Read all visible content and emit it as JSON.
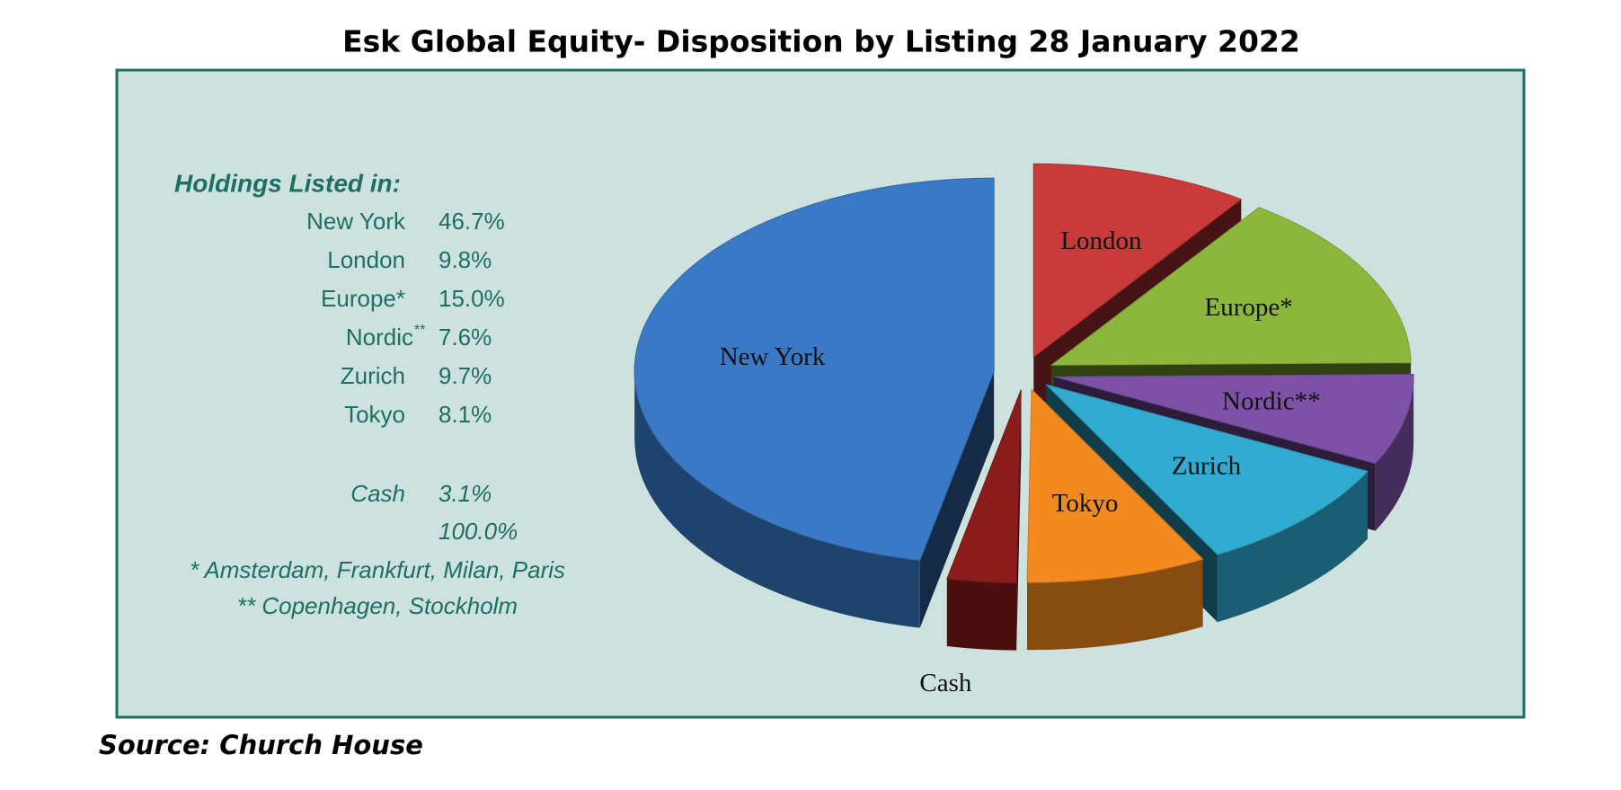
{
  "chart_data": {
    "type": "pie",
    "title": "Esk Global Equity- Disposition by Listing 28 January 2022",
    "categories": [
      "New York",
      "London",
      "Europe*",
      "Nordic**",
      "Zurich",
      "Tokyo",
      "Cash"
    ],
    "values": [
      46.7,
      9.8,
      15.0,
      7.6,
      9.7,
      8.1,
      3.1
    ],
    "value_labels": [
      "46.7%",
      "9.8%",
      "15.0%",
      "7.6%",
      "9.7%",
      "8.1%",
      "3.1%"
    ],
    "colors": [
      "#3b79c6",
      "#c93a3a",
      "#8db63d",
      "#7d52a6",
      "#31abd0",
      "#f38a20",
      "#8a1c1c"
    ],
    "total": {
      "value": 100.0,
      "label": "100.0%"
    },
    "legend_heading": "Holdings Listed in:",
    "legend_labels": [
      "New York",
      "London",
      "Europe*",
      "Nordic",
      "Zurich",
      "Tokyo",
      "Cash"
    ],
    "legend_superscript": "**",
    "footnotes": [
      "* Amsterdam, Frankfurt, Milan, Paris",
      "** Copenhagen, Stockholm"
    ],
    "source": "Source: Church House"
  }
}
